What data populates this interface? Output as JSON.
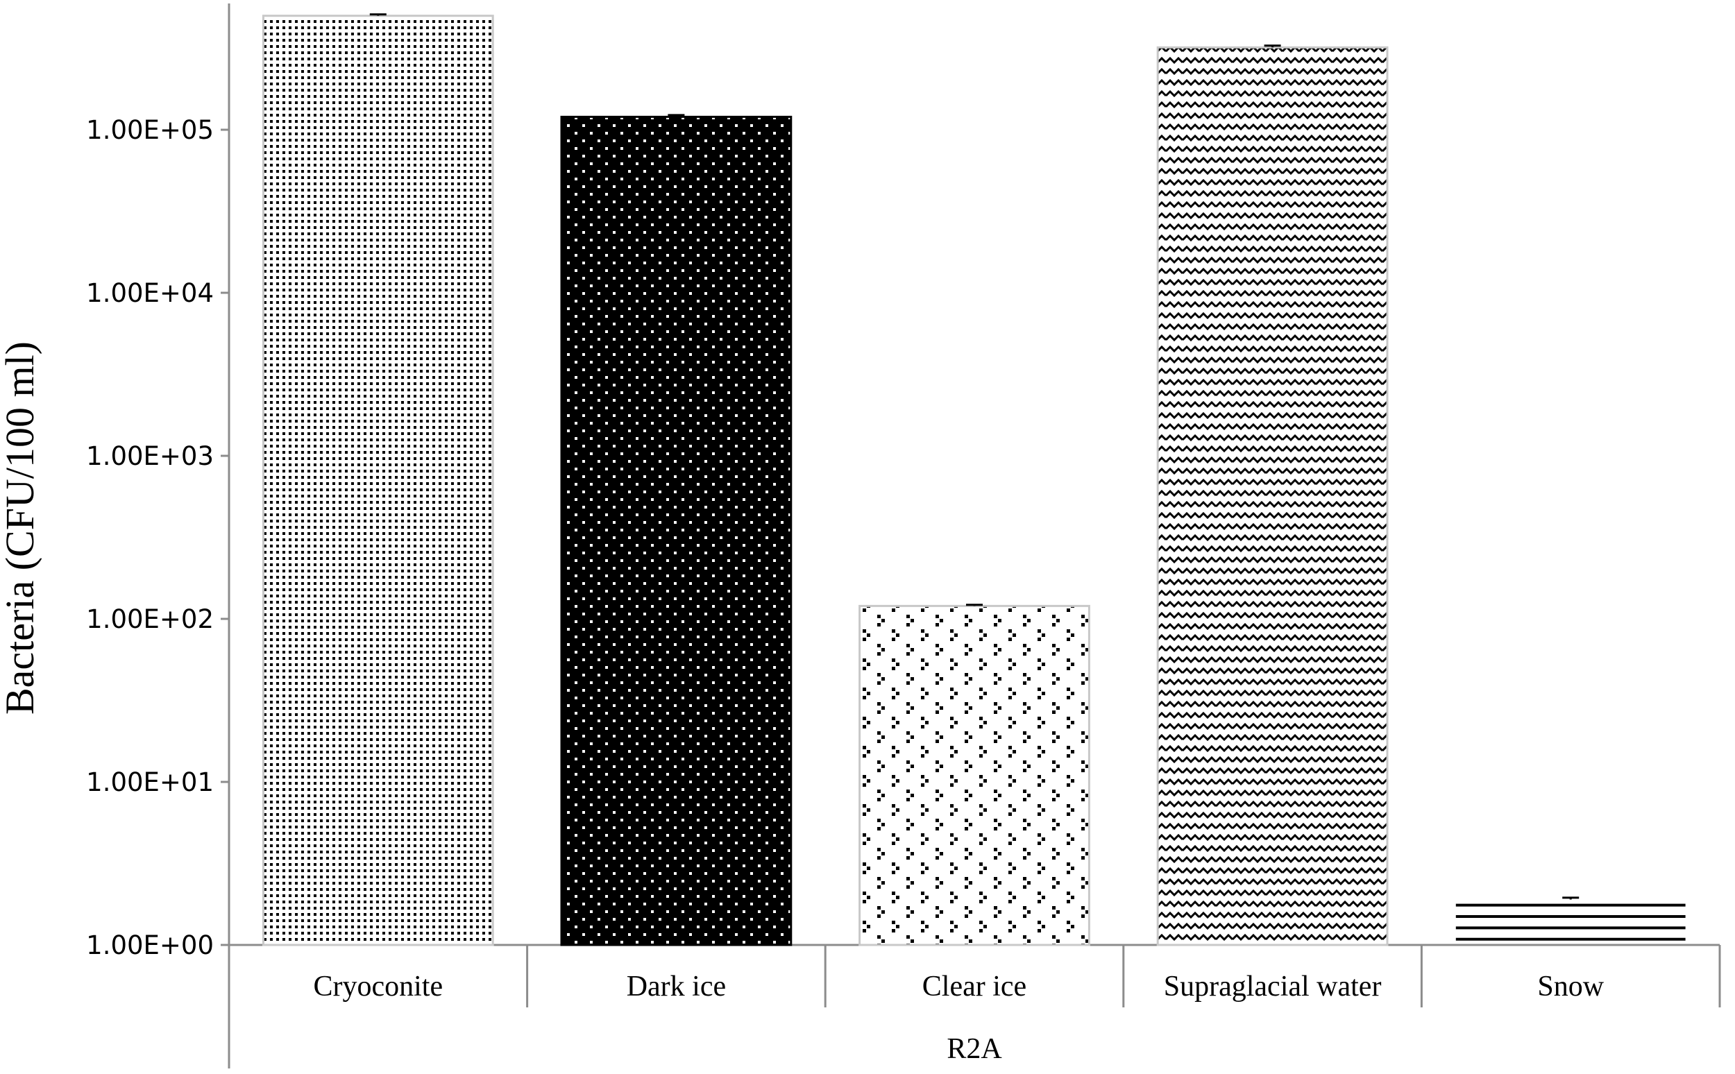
{
  "chart_data": {
    "type": "bar",
    "ylabel": "Bacteria (CFU/100 ml)",
    "group_label": "R2A",
    "categories": [
      "Cryoconite",
      "Dark ice",
      "Clear ice",
      "Supraglacial water",
      "Snow"
    ],
    "values": [
      500000,
      120000,
      120,
      320000,
      1.9
    ],
    "error_plus": [
      10000,
      3000,
      2,
      8000,
      0.05
    ],
    "y_scale": "log",
    "ylim": [
      1,
      500000
    ],
    "y_ticks": [
      "1.00E+00",
      "1.00E+01",
      "1.00E+02",
      "1.00E+03",
      "1.00E+04",
      "1.00E+05"
    ],
    "y_tick_values": [
      1,
      10,
      100,
      1000,
      10000,
      100000
    ],
    "bar_patterns": [
      "fine-dots",
      "white-dots-on-black",
      "sparse-dot-clusters",
      "zigzag",
      "horizontal-lines"
    ],
    "colors": {
      "axis": "#8c8c8c",
      "bar_border": "#c8c8c8",
      "ink": "#000000",
      "background": "#ffffff"
    },
    "grid": false
  }
}
